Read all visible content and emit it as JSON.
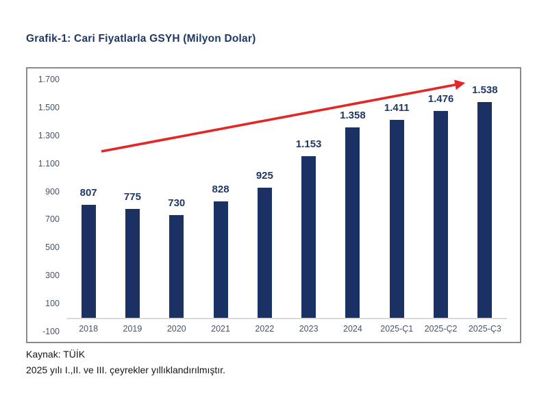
{
  "title": "Grafik-1: Cari Fiyatlarla GSYH (Milyon Dolar)",
  "footer": {
    "source": "Kaynak: TÜİK",
    "note": "2025 yılı I.,II. ve III. çeyrekler yıllıklandırılmıştır."
  },
  "colors": {
    "bar": "#1B3164",
    "value_label_text": "#1F3864",
    "axis_text": "#44546A",
    "arrow": "#E32726",
    "frame_border": "#8A8A8A",
    "baseline": "#D9D9D9",
    "background": "#FFFFFF"
  },
  "chart_data": {
    "type": "bar",
    "title": "Grafik-1: Cari Fiyatlarla GSYH (Milyon Dolar)",
    "categories": [
      "2018",
      "2019",
      "2020",
      "2021",
      "2022",
      "2023",
      "2024",
      "2025-Ç1",
      "2025-Ç2",
      "2025-Ç3"
    ],
    "values": [
      807,
      775,
      730,
      828,
      925,
      1153,
      1358,
      1411,
      1476,
      1538
    ],
    "value_labels": [
      "807",
      "775",
      "730",
      "828",
      "925",
      "1.153",
      "1.358",
      "1.411",
      "1.476",
      "1.538"
    ],
    "ylim": [
      -100,
      1700
    ],
    "yticks": [
      1700,
      1500,
      1300,
      1100,
      900,
      700,
      500,
      300,
      100,
      -100
    ],
    "ytick_labels": [
      "1.700",
      "1.500",
      "1.300",
      "1.100",
      "900",
      "700",
      "500",
      "300",
      "100",
      "-100"
    ],
    "xlabel": "",
    "ylabel": "",
    "grid": false,
    "legend": "none",
    "annotations": [
      {
        "type": "arrow",
        "description": "upward red trend arrow across bar tops",
        "color": "#E32726"
      }
    ]
  }
}
